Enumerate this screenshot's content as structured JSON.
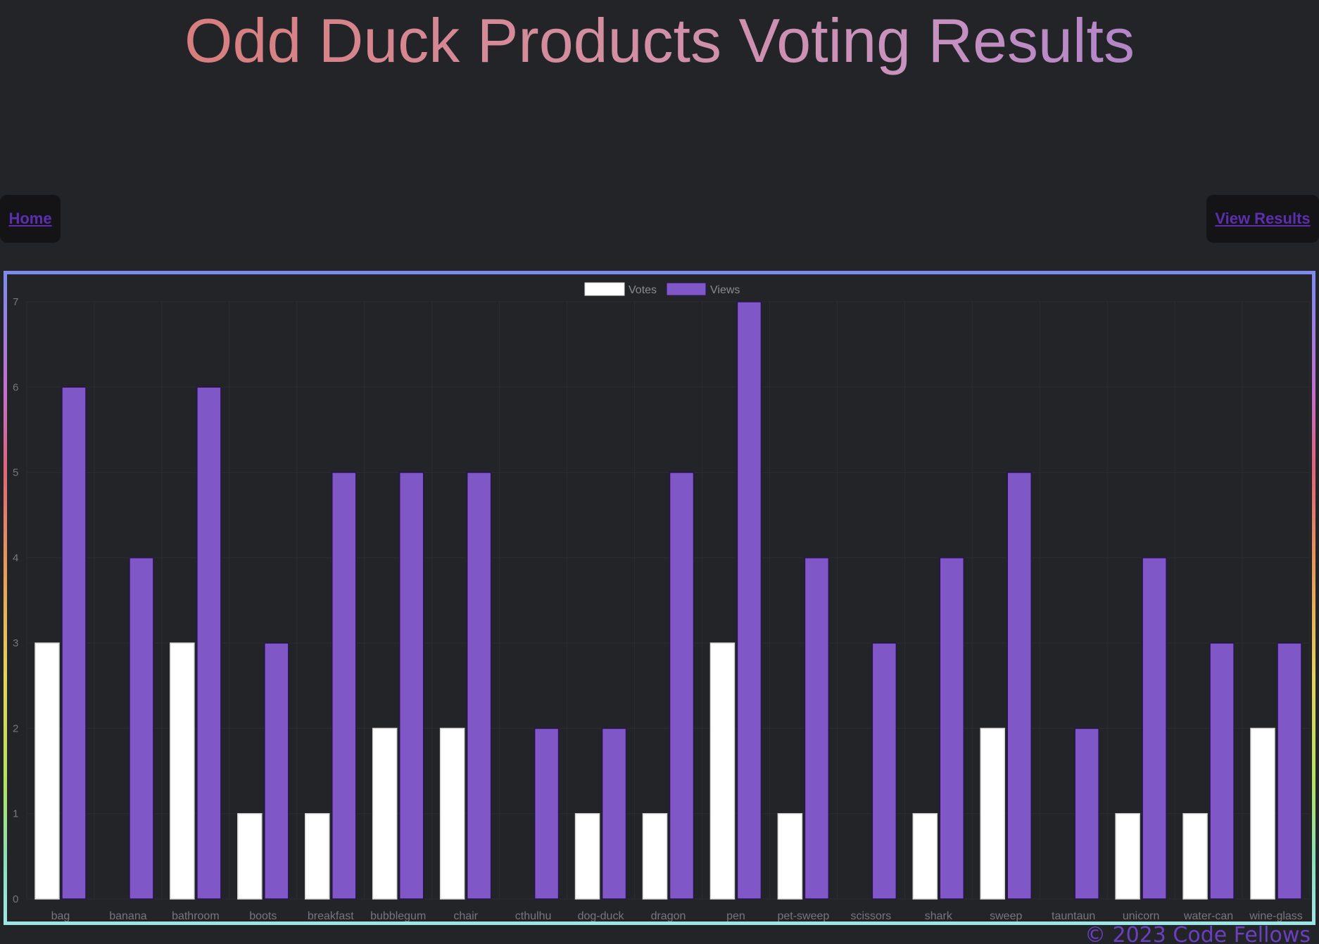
{
  "page": {
    "title": "Odd Duck Products Voting Results",
    "footer": "© 2023 Code Fellows"
  },
  "nav": {
    "home_label": "Home",
    "results_label": "View Results"
  },
  "colors": {
    "votes": "#ffffff",
    "views": "#7f57c6",
    "grid": "#2c2d31",
    "tick_text": "#76777c",
    "legend_text": "#8a8b90"
  },
  "chart_data": {
    "type": "bar",
    "categories": [
      "bag",
      "banana",
      "bathroom",
      "boots",
      "breakfast",
      "bubblegum",
      "chair",
      "cthulhu",
      "dog-duck",
      "dragon",
      "pen",
      "pet-sweep",
      "scissors",
      "shark",
      "sweep",
      "tauntaun",
      "unicorn",
      "water-can",
      "wine-glass"
    ],
    "series": [
      {
        "name": "Votes",
        "values": [
          3,
          0,
          3,
          1,
          1,
          2,
          2,
          0,
          1,
          1,
          3,
          1,
          0,
          1,
          2,
          0,
          1,
          1,
          2
        ]
      },
      {
        "name": "Views",
        "values": [
          6,
          4,
          6,
          3,
          5,
          5,
          5,
          2,
          2,
          5,
          7,
          4,
          3,
          4,
          5,
          2,
          4,
          3,
          3
        ]
      }
    ],
    "ylim": [
      0,
      7
    ],
    "yticks": [
      "0",
      "1",
      "2",
      "3",
      "4",
      "5",
      "6",
      "7"
    ],
    "grid": true,
    "legend_position": "top-center"
  }
}
